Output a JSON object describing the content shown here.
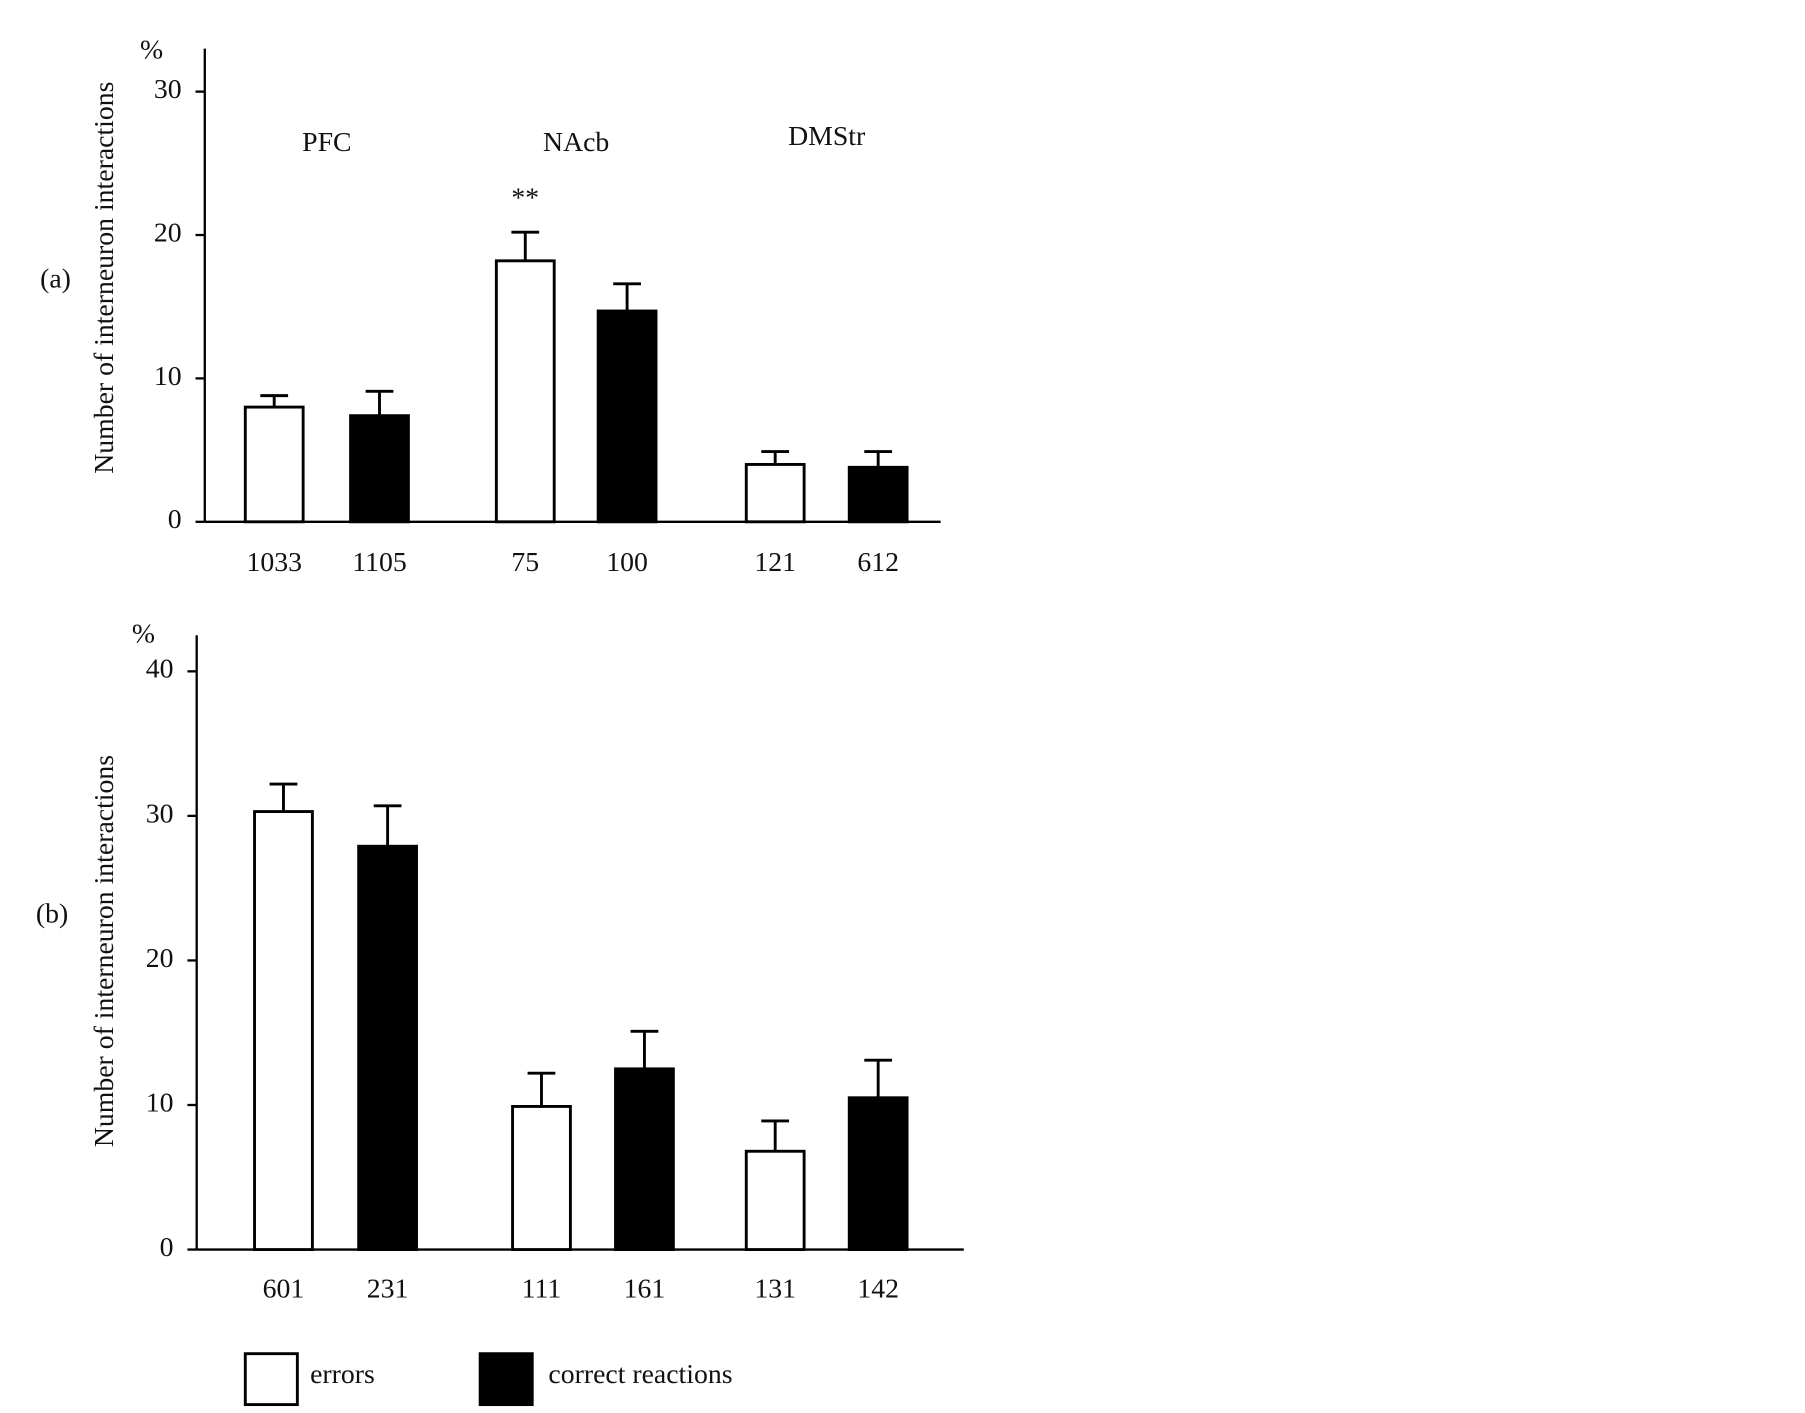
{
  "chart_data": [
    {
      "type": "bar",
      "panel_label": "(a)",
      "ylabel": "Number of interneuron interactions",
      "y_unit": "%",
      "categories": [
        "1033",
        "1105",
        "75",
        "100",
        "121",
        "612"
      ],
      "groups": [
        "PFC",
        "NAcb",
        "DMStr"
      ],
      "annotations": [
        "**"
      ],
      "series": [
        {
          "color": "#ffffff",
          "values": [
            8.0,
            null,
            18.2,
            null,
            4.0,
            null
          ],
          "errors": [
            0.8,
            null,
            2.0,
            null,
            0.9,
            null
          ]
        },
        {
          "color": "#000000",
          "values": [
            null,
            7.4,
            null,
            14.7,
            null,
            3.8
          ],
          "errors": [
            null,
            1.7,
            null,
            1.9,
            null,
            1.1
          ]
        }
      ],
      "ylim": [
        0,
        33
      ],
      "yticks": [
        0,
        10,
        20,
        30
      ]
    },
    {
      "type": "bar",
      "panel_label": "(b)",
      "ylabel": "Number of interneuron interactions",
      "y_unit": "%",
      "categories": [
        "601",
        "231",
        "111",
        "161",
        "131",
        "142"
      ],
      "series": [
        {
          "name": "errors",
          "color": "#ffffff",
          "values": [
            30.3,
            null,
            9.9,
            null,
            6.8,
            null
          ],
          "errors": [
            1.9,
            null,
            2.3,
            null,
            2.1,
            null
          ]
        },
        {
          "name": "correct reactions",
          "color": "#000000",
          "values": [
            null,
            27.9,
            null,
            12.5,
            null,
            10.5
          ],
          "errors": [
            null,
            2.8,
            null,
            2.6,
            null,
            2.6
          ]
        }
      ],
      "ylim": [
        0,
        42.5
      ],
      "yticks": [
        0,
        10,
        20,
        30,
        40
      ]
    }
  ]
}
